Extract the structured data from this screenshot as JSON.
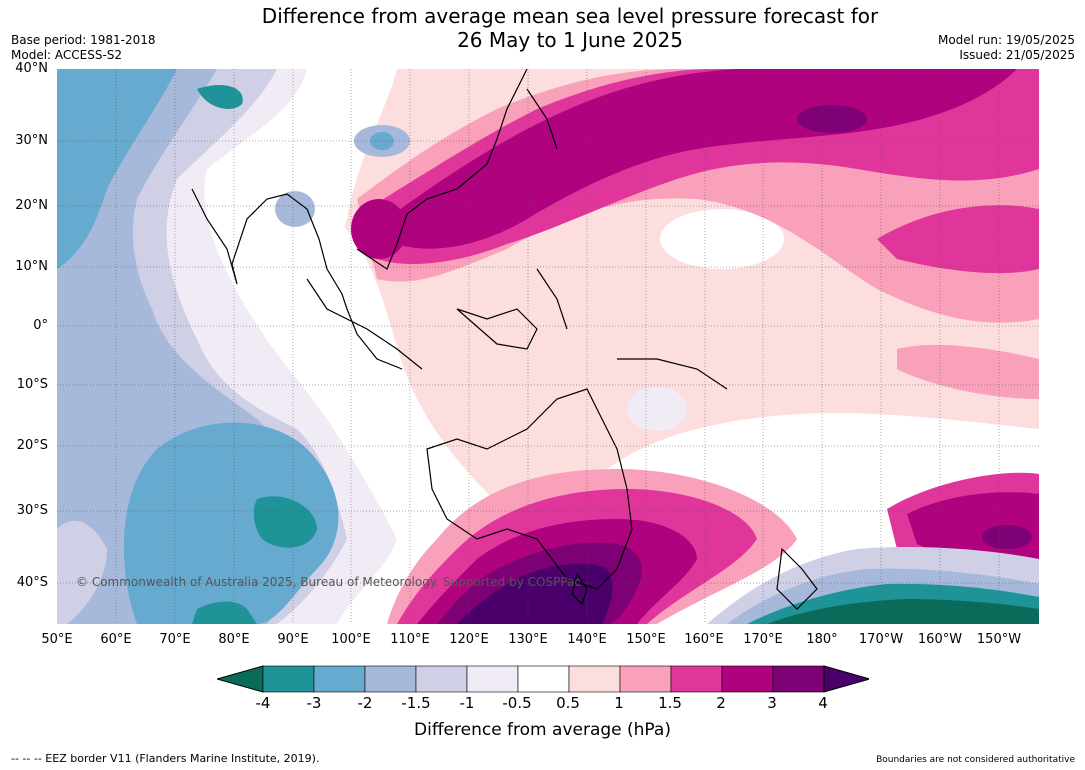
{
  "title_line1": "Difference from average mean sea level pressure forecast for",
  "title_line2": "26 May to 1 June 2025",
  "base_period": "Base period: 1981-2018",
  "model": "Model: ACCESS-S2",
  "model_run": "Model run: 19/05/2025",
  "issued": "Issued: 21/05/2025",
  "copyright": "© Commonwealth of Australia 2025, Bureau of Meteorology. Supported by COSPPac",
  "lat_labels": [
    "40°N",
    "30°N",
    "20°N",
    "10°N",
    "0°",
    "10°S",
    "20°S",
    "30°S",
    "40°S"
  ],
  "lon_labels": [
    "50°E",
    "60°E",
    "70°E",
    "80°E",
    "90°E",
    "100°E",
    "110°E",
    "120°E",
    "130°E",
    "140°E",
    "150°E",
    "160°E",
    "170°E",
    "180°",
    "170°W",
    "160°W",
    "150°W"
  ],
  "colorbar": {
    "ticks": [
      "-4",
      "-3",
      "-2",
      "-1.5",
      "-1",
      "-0.5",
      "0.5",
      "1",
      "1.5",
      "2",
      "3",
      "4"
    ],
    "colors": [
      "#0a6b5a",
      "#1e9498",
      "#67aacf",
      "#a6b9da",
      "#cfcfe6",
      "#f1ebf5",
      "#ffffff",
      "#fddede",
      "#f9a0bb",
      "#e0369b",
      "#b0017e",
      "#7d0074",
      "#4a006a"
    ],
    "label": "Difference from average (hPa)"
  },
  "legend_eez": "--  --  -- EEZ border V11 (Flanders Marine Institute, 2019).",
  "boundaries_note": "Boundaries are not considered authoritative"
}
